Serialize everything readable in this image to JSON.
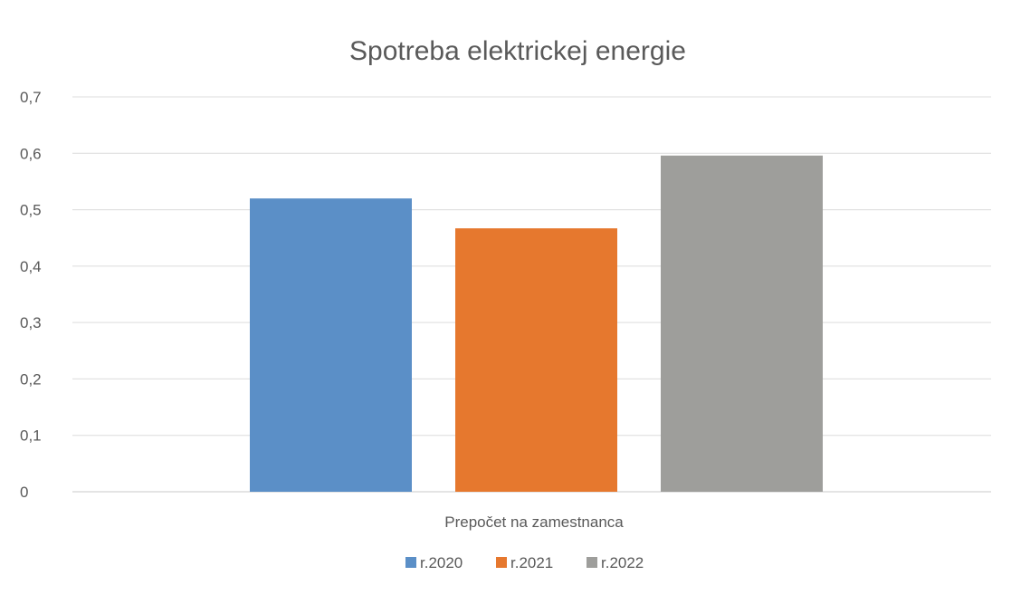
{
  "chart_data": {
    "type": "bar",
    "title": "Spotreba elektrickej energie",
    "categories": [
      "Prepočet na zamestnanca"
    ],
    "series": [
      {
        "name": "r.2020",
        "values": [
          0.52
        ],
        "color": "#5b8fc7"
      },
      {
        "name": "r.2021",
        "values": [
          0.467
        ],
        "color": "#e6782e"
      },
      {
        "name": "r.2022",
        "values": [
          0.596
        ],
        "color": "#9e9e9b"
      }
    ],
    "xlabel": "",
    "ylabel": "",
    "ylim": [
      0,
      0.7
    ],
    "yticks": [
      "0",
      "0,1",
      "0,2",
      "0,3",
      "0,4",
      "0,5",
      "0,6",
      "0,7"
    ],
    "grid": true,
    "legend": "bottom"
  }
}
